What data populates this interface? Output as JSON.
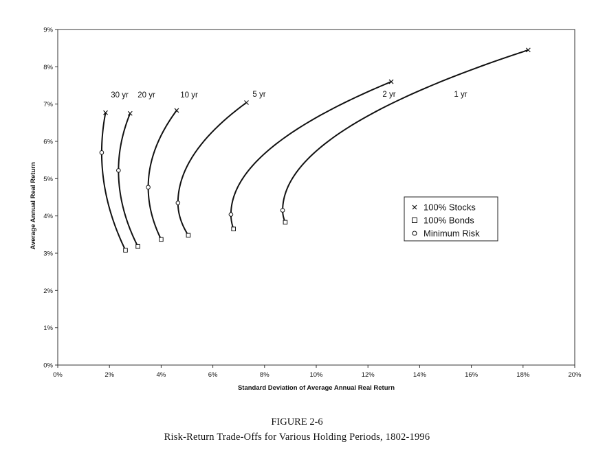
{
  "figure": {
    "number": "FIGURE 2-6",
    "title": "Risk-Return Trade-Offs for Various Holding Periods, 1802-1996"
  },
  "chart_data": {
    "type": "line",
    "xlabel": "Standard Deviation of Average Annual Real Return",
    "ylabel": "Average Annual Real Return",
    "xlim": [
      0,
      20
    ],
    "ylim": [
      0,
      9
    ],
    "x_ticks": [
      0,
      2,
      4,
      6,
      8,
      10,
      12,
      14,
      16,
      18,
      20
    ],
    "y_ticks": [
      0,
      1,
      2,
      3,
      4,
      5,
      6,
      7,
      8,
      9
    ],
    "x_tick_labels": [
      "0%",
      "2%",
      "4%",
      "6%",
      "8%",
      "10%",
      "12%",
      "14%",
      "16%",
      "18%",
      "20%"
    ],
    "y_tick_labels": [
      "0%",
      "1%",
      "2%",
      "3%",
      "4%",
      "5%",
      "6%",
      "7%",
      "8%",
      "9%"
    ],
    "grid": false,
    "legend": {
      "placement": "right",
      "entries": [
        {
          "marker": "x",
          "label": "100% Stocks"
        },
        {
          "marker": "square",
          "label": "100% Bonds"
        },
        {
          "marker": "circle",
          "label": "Minimum Risk"
        }
      ]
    },
    "series": [
      {
        "name": "30 yr",
        "bonds": [
          2.62,
          3.08
        ],
        "min_risk": [
          1.7,
          5.7
        ],
        "stocks": [
          1.85,
          6.77
        ]
      },
      {
        "name": "20 yr",
        "bonds": [
          3.1,
          3.18
        ],
        "min_risk": [
          2.35,
          5.22
        ],
        "stocks": [
          2.8,
          6.75
        ]
      },
      {
        "name": "10 yr",
        "bonds": [
          4.0,
          3.37
        ],
        "min_risk": [
          3.5,
          4.77
        ],
        "stocks": [
          4.6,
          6.83
        ]
      },
      {
        "name": "5 yr",
        "bonds": [
          5.05,
          3.48
        ],
        "min_risk": [
          4.65,
          4.35
        ],
        "stocks": [
          7.3,
          7.04
        ]
      },
      {
        "name": "2 yr",
        "bonds": [
          6.8,
          3.65
        ],
        "min_risk": [
          6.7,
          4.04
        ],
        "stocks": [
          12.9,
          7.6
        ]
      },
      {
        "name": "1 yr",
        "bonds": [
          8.8,
          3.83
        ],
        "min_risk": [
          8.7,
          4.15
        ],
        "stocks": [
          18.2,
          8.45
        ]
      }
    ]
  }
}
